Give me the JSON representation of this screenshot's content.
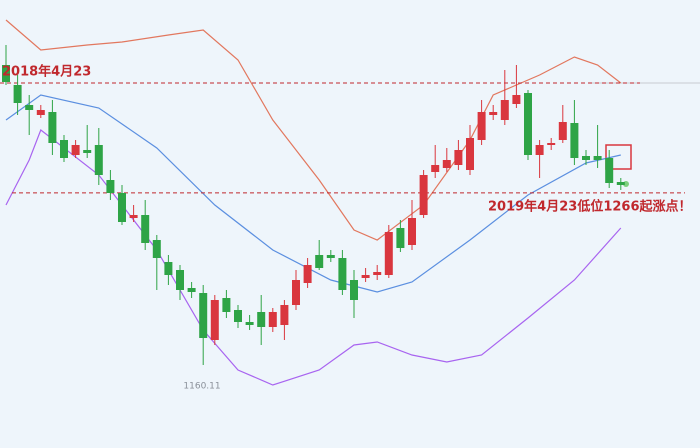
{
  "chart_data": {
    "type": "candlestick",
    "open": [
      1355.5,
      1341.5,
      1327.5,
      1320.5,
      1322.6,
      1303,
      1292.5,
      1296,
      1299.5,
      1275,
      1265.9,
      1248.4,
      1250.5,
      1233,
      1217.6,
      1212,
      1199.4,
      1195.9,
      1163,
      1192.4,
      1184,
      1175.6,
      1182.6,
      1172.1,
      1173.5,
      1187.5,
      1202.9,
      1222.5,
      1222.5,
      1220.4,
      1205,
      1206.4,
      1208.5,
      1208.5,
      1241.4,
      1229.5,
      1250.5,
      1280.6,
      1283.4,
      1285.5,
      1282,
      1303,
      1320.5,
      1317,
      1328.2,
      1335.9,
      1292.5,
      1299.5,
      1303,
      1314.9,
      1291.8,
      1291.8,
      1290.4,
      1273.6
    ],
    "high": [
      1369.5,
      1348.5,
      1334.5,
      1327.5,
      1331,
      1306.5,
      1303,
      1313.5,
      1311.4,
      1282,
      1271.5,
      1257.5,
      1261,
      1236.5,
      1222.5,
      1215.5,
      1203.6,
      1201.5,
      1194.5,
      1198,
      1187.5,
      1180.5,
      1194.5,
      1185.4,
      1191,
      1212,
      1220.4,
      1233,
      1226,
      1226,
      1212,
      1213.4,
      1215.5,
      1243.5,
      1247,
      1261,
      1282,
      1299.5,
      1297.4,
      1303,
      1313.5,
      1331,
      1327.5,
      1352,
      1355.5,
      1338,
      1303,
      1304.4,
      1327.5,
      1331,
      1296,
      1313.5,
      1296,
      1276.4
    ],
    "low": [
      1341.5,
      1320.5,
      1306.5,
      1318.4,
      1292.5,
      1287.6,
      1290.4,
      1290.4,
      1271.5,
      1261,
      1243.5,
      1245.6,
      1226,
      1198,
      1201.5,
      1191,
      1192.4,
      1145.5,
      1159.5,
      1178.4,
      1171.4,
      1170,
      1159.5,
      1168.6,
      1163,
      1184,
      1199.4,
      1212,
      1217.6,
      1194.5,
      1178.4,
      1203.6,
      1205,
      1206.4,
      1224.6,
      1226,
      1248.4,
      1276.4,
      1280.6,
      1282,
      1278.5,
      1299.5,
      1317,
      1313.5,
      1325.4,
      1289,
      1276.4,
      1296,
      1300.9,
      1285.5,
      1285.5,
      1283.4,
      1269.4,
      1268
    ],
    "close": [
      1343.6,
      1328.9,
      1324,
      1324,
      1300.9,
      1290.4,
      1299.5,
      1293.9,
      1278.5,
      1265.9,
      1245.6,
      1250.5,
      1230.9,
      1220.4,
      1208.5,
      1198,
      1196.6,
      1164.4,
      1191,
      1182.6,
      1175.6,
      1173.5,
      1172.1,
      1182.6,
      1187.5,
      1205,
      1215.5,
      1213.4,
      1220.4,
      1198,
      1191,
      1208.5,
      1210.6,
      1238.6,
      1227.4,
      1248.4,
      1278.5,
      1285.5,
      1289,
      1296,
      1304.4,
      1322.6,
      1322.6,
      1331,
      1334.5,
      1292.5,
      1299.5,
      1300.9,
      1315.6,
      1290.4,
      1289,
      1289,
      1272.9,
      1271.5
    ],
    "up_color": "#d9363e",
    "down_color": "#2ea446",
    "bands": [
      {
        "x": [
          0,
          3,
          7,
          10,
          14,
          17,
          20,
          23,
          27,
          30,
          32,
          36,
          40,
          42,
          46,
          49,
          51,
          53
        ],
        "values": [
          1387,
          1366,
          1369.5,
          1371.6,
          1376.5,
          1380,
          1359,
          1317,
          1275,
          1240,
          1233,
          1257.5,
          1303,
          1334.5,
          1348.5,
          1361.1,
          1355.5,
          1342.9
        ],
        "color": "#e2775e"
      },
      {
        "x": [
          0,
          3,
          8,
          13,
          18,
          23,
          28,
          32,
          35,
          40,
          45,
          50,
          53
        ],
        "values": [
          1317,
          1334.5,
          1325.4,
          1297.4,
          1257.5,
          1226,
          1205,
          1196.6,
          1203.6,
          1233,
          1264.5,
          1286.9,
          1292.5
        ],
        "color": "#5b8fe0"
      },
      {
        "x": [
          0,
          2,
          3,
          8,
          13,
          17,
          20,
          23,
          27,
          30,
          32,
          35,
          38,
          41,
          45,
          49,
          53
        ],
        "values": [
          1257.5,
          1289,
          1310,
          1278.5,
          1226,
          1170,
          1142,
          1131.5,
          1142,
          1159.5,
          1161.6,
          1152.5,
          1147.6,
          1152.5,
          1178.4,
          1205,
          1241.4
        ],
        "color": "#a864f0"
      }
    ],
    "ylim": [
      1087.4,
      1401
    ],
    "annotations": [
      {
        "text": "2018年4月23",
        "level": 1342.9
      },
      {
        "text": "2019年4月23低位1266起涨点！",
        "level": 1266
      }
    ],
    "low_label": 1160.11
  }
}
